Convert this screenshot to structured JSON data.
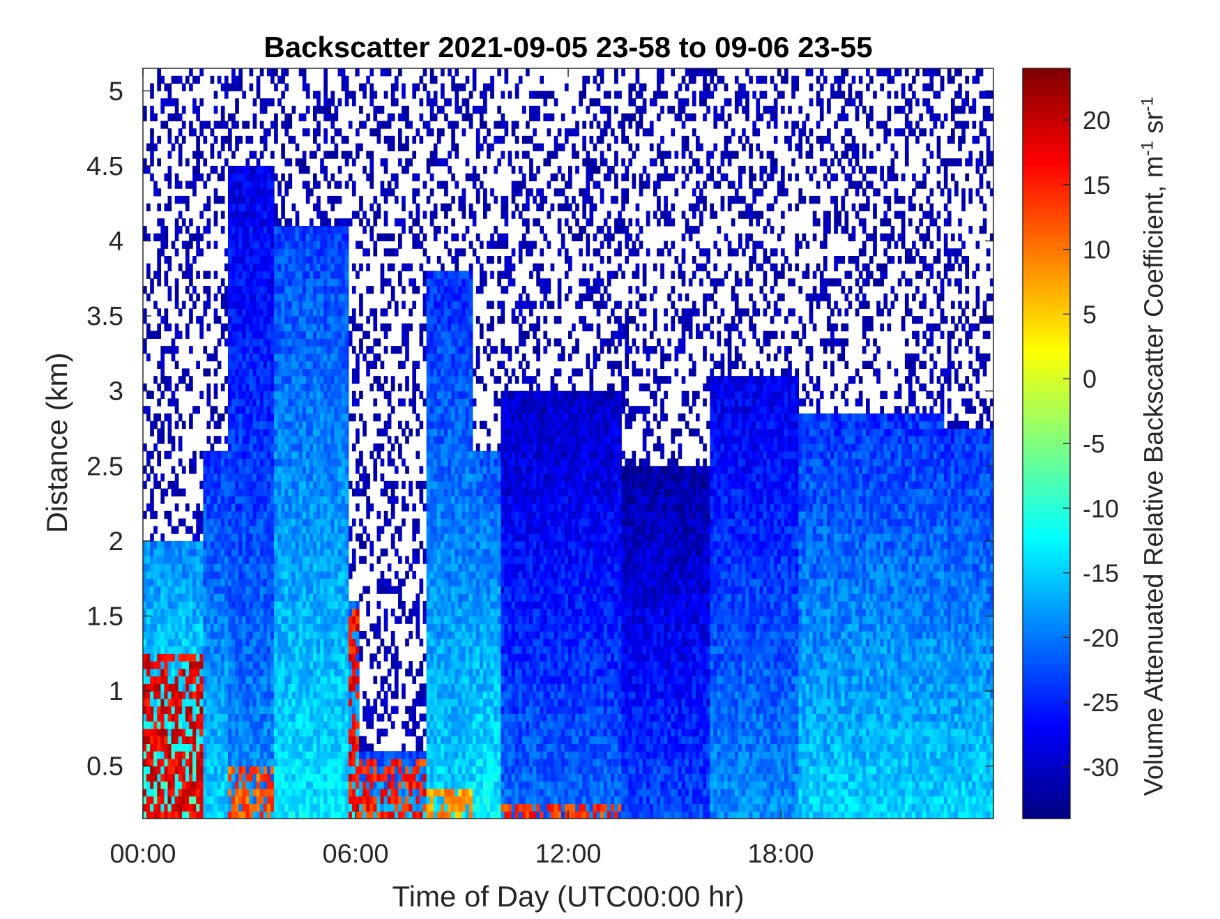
{
  "chart_data": {
    "type": "heatmap",
    "title": "Backscatter 2021-09-05 23-58 to 09-06 23-55",
    "xlabel": "Time of Day (UTC00:00 hr)",
    "ylabel": "Distance (km)",
    "colorbar_label": "Volume Attenuated Relative Backscatter Coefficient, m",
    "colorbar_unit_suffix_1": "-1",
    "colorbar_unit_mid": " sr",
    "colorbar_unit_suffix_2": "-1",
    "x_unit": "hour",
    "xlim": [
      0,
      24
    ],
    "ylim": [
      0.15,
      5.15
    ],
    "clim": [
      -34,
      24
    ],
    "colormap": "jet",
    "x_ticks": [
      0,
      6,
      12,
      18
    ],
    "x_tick_labels": [
      "00:00",
      "06:00",
      "12:00",
      "18:00"
    ],
    "y_ticks": [
      0.5,
      1,
      1.5,
      2,
      2.5,
      3,
      3.5,
      4,
      4.5,
      5
    ],
    "y_tick_labels": [
      "0.5",
      "1",
      "1.5",
      "2",
      "2.5",
      "3",
      "3.5",
      "4",
      "4.5",
      "5"
    ],
    "colorbar_ticks": [
      20,
      15,
      10,
      5,
      0,
      -5,
      -10,
      -15,
      -20,
      -25,
      -30
    ],
    "colorbar_tick_labels": [
      "20",
      "15",
      "10",
      "5",
      "0",
      "-5",
      "-10",
      "-15",
      "-20",
      "-25",
      "-30"
    ],
    "no_data_color": "#ffffff",
    "segments": [
      {
        "t0": 0.0,
        "t1": 1.7,
        "top": 2.0,
        "base": -9,
        "warm_top": 1.25,
        "warm": 18
      },
      {
        "t0": 1.7,
        "t1": 2.4,
        "top": 2.6,
        "base": -14,
        "warm_top": 0,
        "warm": 0
      },
      {
        "t0": 2.4,
        "t1": 3.7,
        "top": 4.5,
        "base": -18,
        "warm_top": 0.5,
        "warm": 12
      },
      {
        "t0": 3.7,
        "t1": 5.8,
        "top": 4.1,
        "base": -13,
        "warm_top": 0,
        "warm": 0
      },
      {
        "t0": 5.8,
        "t1": 6.1,
        "top": 1.6,
        "base": -12,
        "warm_top": 1.55,
        "warm": 16
      },
      {
        "t0": 6.1,
        "t1": 8.0,
        "top": 0.6,
        "base": -13,
        "warm_top": 0.55,
        "warm": 15
      },
      {
        "t0": 8.0,
        "t1": 9.3,
        "top": 3.8,
        "base": -14,
        "warm_top": 0.35,
        "warm": 8
      },
      {
        "t0": 9.3,
        "t1": 10.1,
        "top": 2.6,
        "base": -12,
        "warm_top": 0,
        "warm": 0
      },
      {
        "t0": 10.1,
        "t1": 13.5,
        "top": 3.0,
        "base": -20,
        "warm_top": 0.25,
        "warm": 14
      },
      {
        "t0": 13.5,
        "t1": 16.0,
        "top": 2.5,
        "base": -22,
        "warm_top": 0,
        "warm": 0
      },
      {
        "t0": 16.0,
        "t1": 18.5,
        "top": 3.1,
        "base": -18,
        "warm_top": 0,
        "warm": 0
      },
      {
        "t0": 18.5,
        "t1": 22.6,
        "top": 2.85,
        "base": -14,
        "warm_top": 0,
        "warm": 0
      },
      {
        "t0": 22.6,
        "t1": 24.0,
        "top": 2.75,
        "base": -14,
        "warm_top": 0,
        "warm": 0
      }
    ]
  }
}
